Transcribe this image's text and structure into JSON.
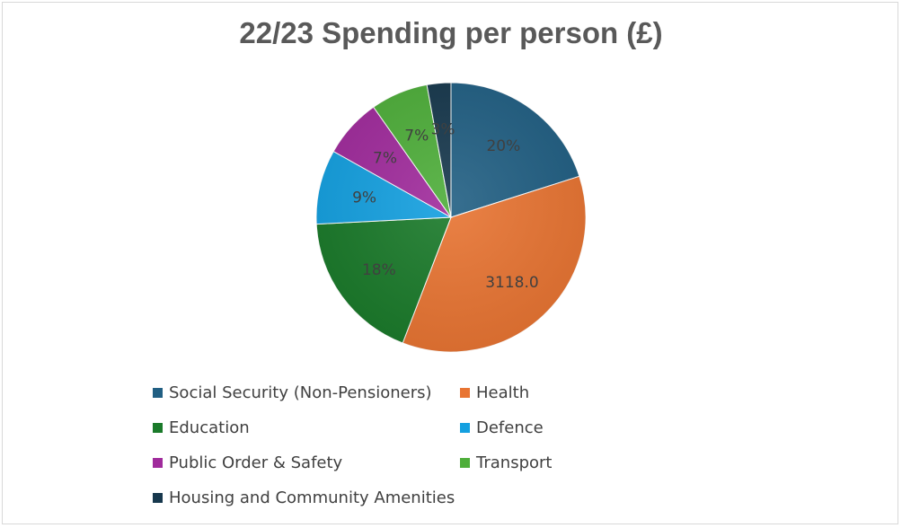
{
  "chart_data": {
    "type": "pie",
    "title": "22/23 Spending per person (£)",
    "categories": [
      "Social Security (Non-Pensioners)",
      "Health",
      "Education",
      "Defence",
      "Public Order & Safety",
      "Transport",
      "Housing and Community Amenities"
    ],
    "values": [
      1750,
      3118.0,
      1600,
      780,
      620,
      600,
      250
    ],
    "data_labels": [
      "20%",
      "3118.0",
      "18%",
      "9%",
      "7%",
      "7%",
      "3%"
    ],
    "colors": [
      "#215f83",
      "#e87432",
      "#1a7a2a",
      "#14a0e0",
      "#a02b9c",
      "#4eae3a",
      "#17384d"
    ],
    "legend_position": "bottom"
  }
}
